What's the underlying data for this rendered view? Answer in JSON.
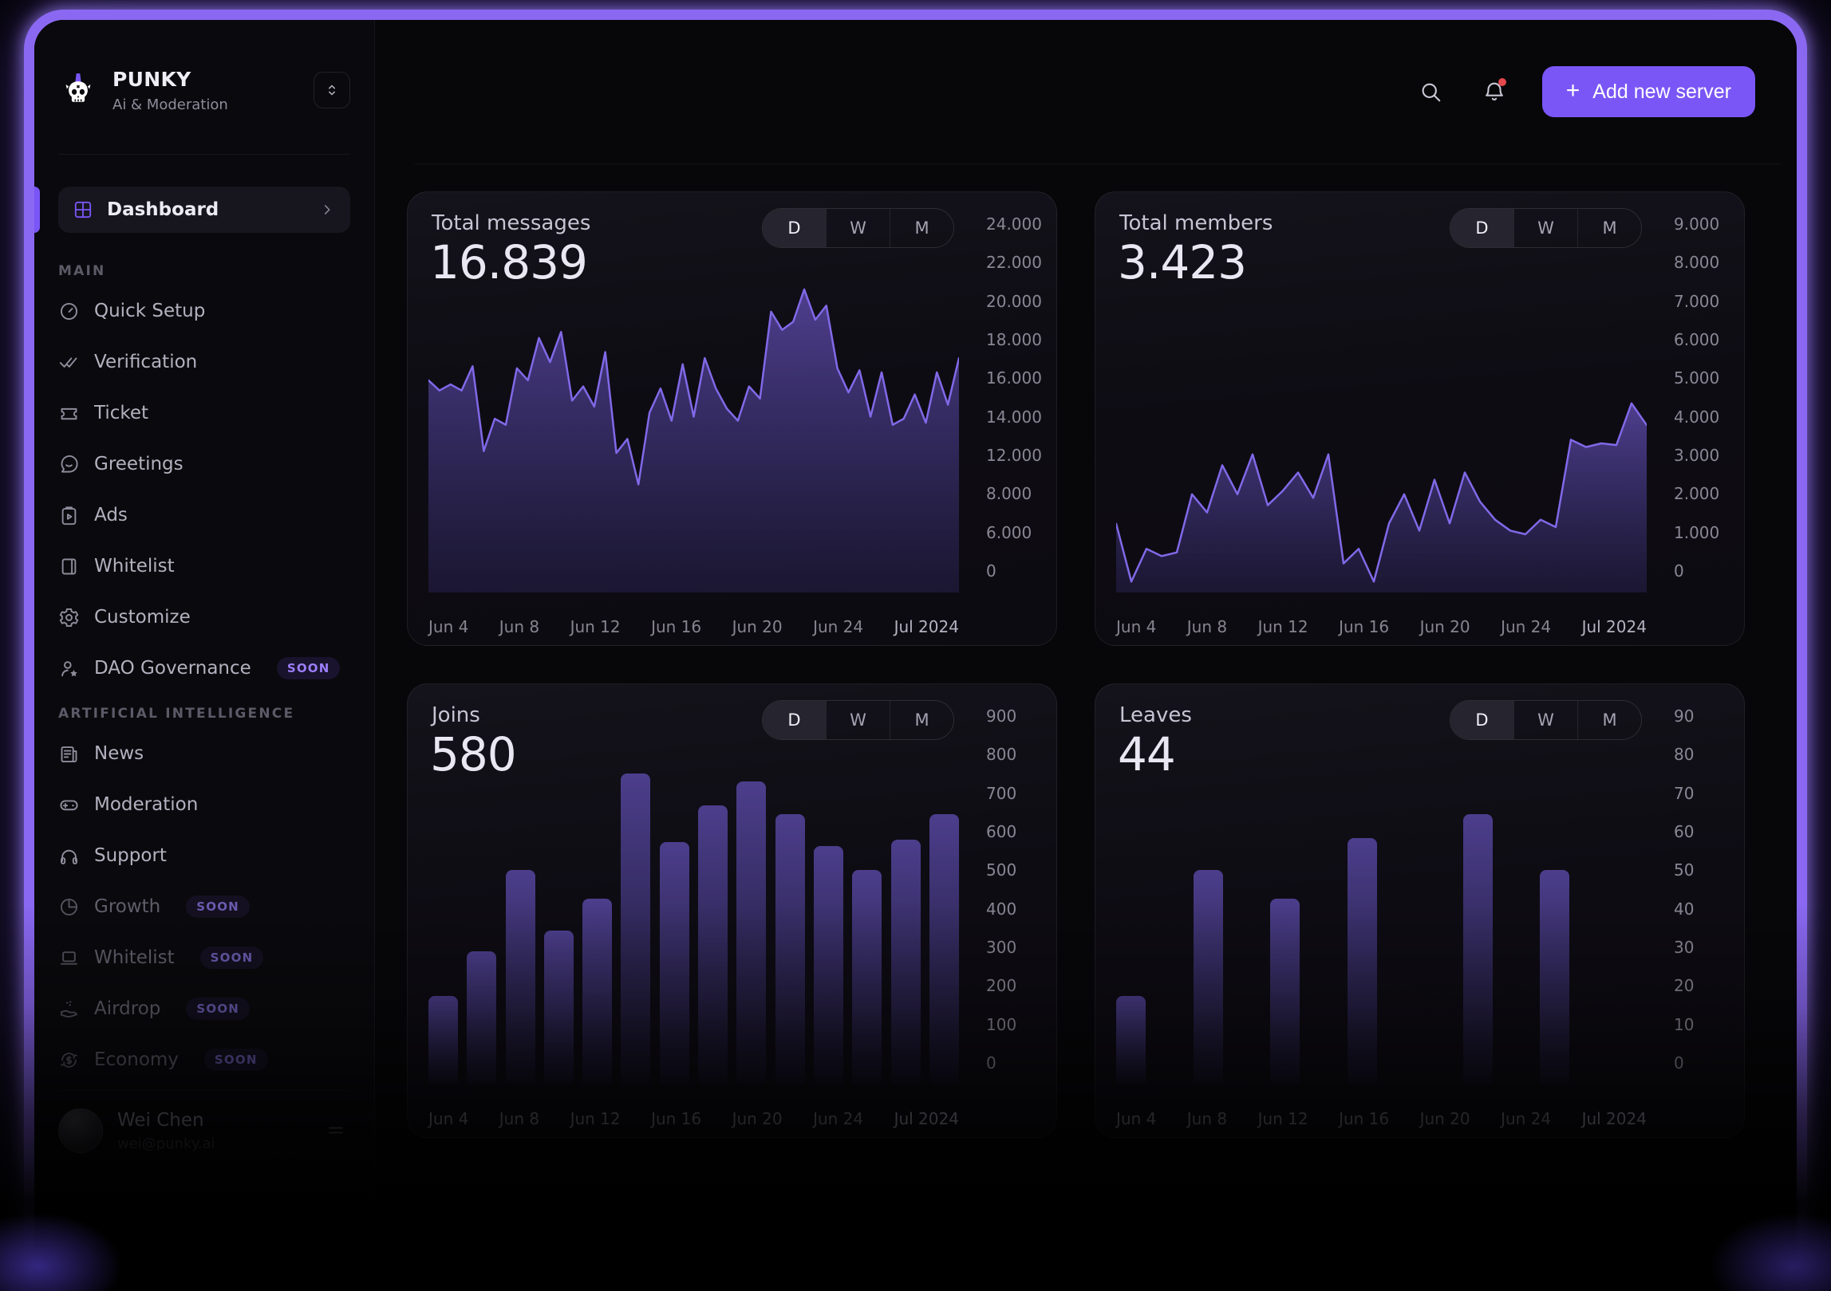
{
  "brand": {
    "name": "PUNKY",
    "subtitle": "Ai & Moderation"
  },
  "topbar": {
    "plus": "+",
    "add_server_label": "Add new server"
  },
  "colors": {
    "accent": "#7a56f6",
    "chart_line": "#8169e8",
    "notification_dot": "#e5484d",
    "badge_text": "#9b7ef8"
  },
  "sidebar": {
    "active": {
      "label": "Dashboard",
      "icon": "dashboard-grid-icon"
    },
    "sections": [
      {
        "label": "MAIN",
        "items": [
          {
            "label": "Quick Setup",
            "icon": "gauge-icon"
          },
          {
            "label": "Verification",
            "icon": "double-check-icon"
          },
          {
            "label": "Ticket",
            "icon": "ticket-icon"
          },
          {
            "label": "Greetings",
            "icon": "message-smile-icon"
          },
          {
            "label": "Ads",
            "icon": "clipboard-play-icon"
          },
          {
            "label": "Whitelist",
            "icon": "book-icon"
          },
          {
            "label": "Customize",
            "icon": "gear-icon"
          },
          {
            "label": "DAO Governance",
            "icon": "user-star-icon",
            "badge": "SOON"
          }
        ]
      },
      {
        "label": "ARTIFICIAL INTELLIGENCE",
        "items": [
          {
            "label": "News",
            "icon": "newspaper-icon"
          },
          {
            "label": "Moderation",
            "icon": "controller-icon"
          },
          {
            "label": "Support",
            "icon": "headphones-icon"
          },
          {
            "label": "Growth",
            "icon": "pie-chart-icon",
            "badge": "SOON",
            "dimmed": true
          },
          {
            "label": "Whitelist",
            "icon": "laptop-icon",
            "badge": "SOON",
            "dimmed": true
          },
          {
            "label": "Airdrop",
            "icon": "hand-coins-icon",
            "badge": "SOON",
            "dimmed": true
          },
          {
            "label": "Economy",
            "icon": "dollar-refresh-icon",
            "badge": "SOON",
            "dimmed": true
          }
        ]
      }
    ],
    "user": {
      "name": "Wei Chen",
      "email": "wei@punky.ai"
    }
  },
  "chart_data": [
    {
      "id": "total-messages",
      "type": "area",
      "title": "Total messages",
      "value_label": "16.839",
      "range_options": [
        "D",
        "W",
        "M"
      ],
      "selected_range": "D",
      "y_ticks": [
        "24.000",
        "22.000",
        "20.000",
        "18.000",
        "16.000",
        "14.000",
        "12.000",
        "8.000",
        "6.000",
        "0"
      ],
      "x_ticks": [
        "Jun 4",
        "Jun 8",
        "Jun 12",
        "Jun 16",
        "Jun 20",
        "Jun 24",
        "Jul 2024"
      ],
      "ylim": [
        0,
        24000
      ],
      "grid": false,
      "legend": false,
      "values": [
        16500,
        16000,
        16300,
        16000,
        17200,
        13000,
        14600,
        14300,
        17100,
        16500,
        18600,
        17400,
        18900,
        15500,
        16200,
        15200,
        17900,
        12900,
        13600,
        10700,
        14900,
        16100,
        14500,
        17300,
        14700,
        17600,
        16100,
        15100,
        14500,
        16200,
        15600,
        19900,
        19000,
        19400,
        21000,
        19500,
        20200,
        17100,
        15900,
        17000,
        14700,
        16900,
        14300,
        14600,
        15800,
        14400,
        16900,
        15300,
        17600
      ]
    },
    {
      "id": "total-members",
      "type": "area",
      "title": "Total members",
      "value_label": "3.423",
      "range_options": [
        "D",
        "W",
        "M"
      ],
      "selected_range": "D",
      "y_ticks": [
        "9.000",
        "8.000",
        "7.000",
        "6.000",
        "5.000",
        "4.000",
        "3.000",
        "2.000",
        "1.000",
        "0"
      ],
      "x_ticks": [
        "Jun 4",
        "Jun 8",
        "Jun 12",
        "Jun 16",
        "Jun 20",
        "Jun 24",
        "Jul 2024"
      ],
      "ylim": [
        0,
        9000
      ],
      "grid": false,
      "legend": false,
      "values": [
        1700,
        270,
        1080,
        900,
        990,
        2430,
        1980,
        3150,
        2430,
        3420,
        2160,
        2520,
        2970,
        2340,
        3420,
        720,
        1080,
        270,
        1710,
        2430,
        1530,
        2790,
        1710,
        2970,
        2250,
        1800,
        1530,
        1440,
        1800,
        1620,
        3780,
        3600,
        3690,
        3650,
        4680,
        4140
      ]
    },
    {
      "id": "joins",
      "type": "bar",
      "title": "Joins",
      "value_label": "580",
      "range_options": [
        "D",
        "W",
        "M"
      ],
      "selected_range": "D",
      "y_ticks": [
        "900",
        "800",
        "700",
        "600",
        "500",
        "400",
        "300",
        "200",
        "100",
        "0"
      ],
      "x_ticks": [
        "Jun 4",
        "Jun 8",
        "Jun 12",
        "Jun 16",
        "Jun 20",
        "Jun 24",
        "Jul 2024"
      ],
      "ylim": [
        0,
        900
      ],
      "grid": false,
      "legend": false,
      "values": [
        220,
        330,
        530,
        380,
        460,
        770,
        600,
        690,
        750,
        670,
        590,
        530,
        605,
        670
      ]
    },
    {
      "id": "leaves",
      "type": "bar",
      "title": "Leaves",
      "value_label": "44",
      "range_options": [
        "D",
        "W",
        "M"
      ],
      "selected_range": "D",
      "y_ticks": [
        "90",
        "80",
        "70",
        "60",
        "50",
        "40",
        "30",
        "20",
        "10",
        "0"
      ],
      "x_ticks": [
        "Jun 4",
        "Jun 8",
        "Jun 12",
        "Jun 16",
        "Jun 20",
        "Jun 24",
        "Jul 2024"
      ],
      "ylim": [
        0,
        90
      ],
      "grid": false,
      "legend": false,
      "values": [
        22,
        0,
        53,
        0,
        46,
        0,
        61,
        0,
        0,
        67,
        0,
        53,
        0,
        0
      ]
    }
  ]
}
